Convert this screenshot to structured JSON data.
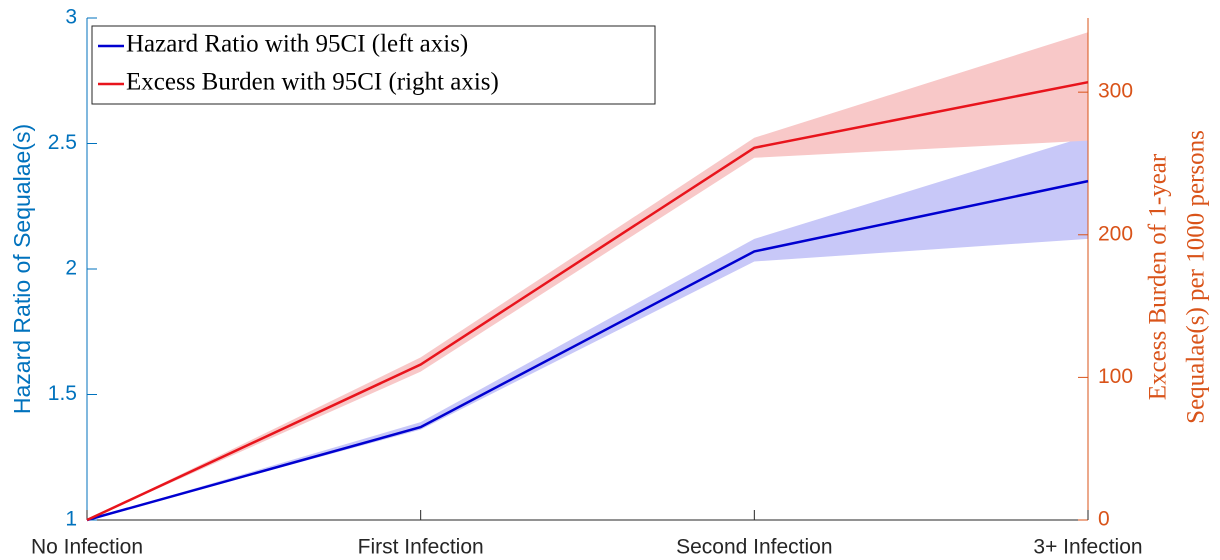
{
  "chart_data": {
    "type": "line",
    "categories": [
      "No Infection",
      "First Infection",
      "Second Infection",
      "3+ Infection"
    ],
    "ylabel": "Hazard Ratio of Sequalae(s)",
    "y2label": [
      "Excess Burden of 1-year",
      "Sequalae(s) per 1000 persons"
    ],
    "ylim": [
      1,
      3
    ],
    "yticks": [
      1,
      1.5,
      2,
      2.5,
      3
    ],
    "y2lim": [
      0,
      352
    ],
    "y2ticks": [
      0,
      100,
      200,
      300
    ],
    "ycolor": "#0072bd",
    "y2color": "#d95319",
    "legend": "upper left",
    "series": [
      {
        "name": "Hazard Ratio with 95CI (left axis)",
        "color": "#0000d0",
        "band_color": "#c8c8f8",
        "axis": "y",
        "values": [
          1,
          1.37,
          2.07,
          2.35
        ],
        "lower": [
          1,
          1.36,
          2.03,
          2.12
        ],
        "upper": [
          1,
          1.39,
          2.12,
          2.53
        ]
      },
      {
        "name": "Excess Burden with 95CI (right axis)",
        "color": "#e8141c",
        "band_color": "#f8c8c8",
        "axis": "y2",
        "values": [
          0,
          109,
          261,
          307
        ],
        "lower": [
          0,
          104,
          254,
          266
        ],
        "upper": [
          0,
          114,
          268,
          342
        ]
      }
    ]
  }
}
